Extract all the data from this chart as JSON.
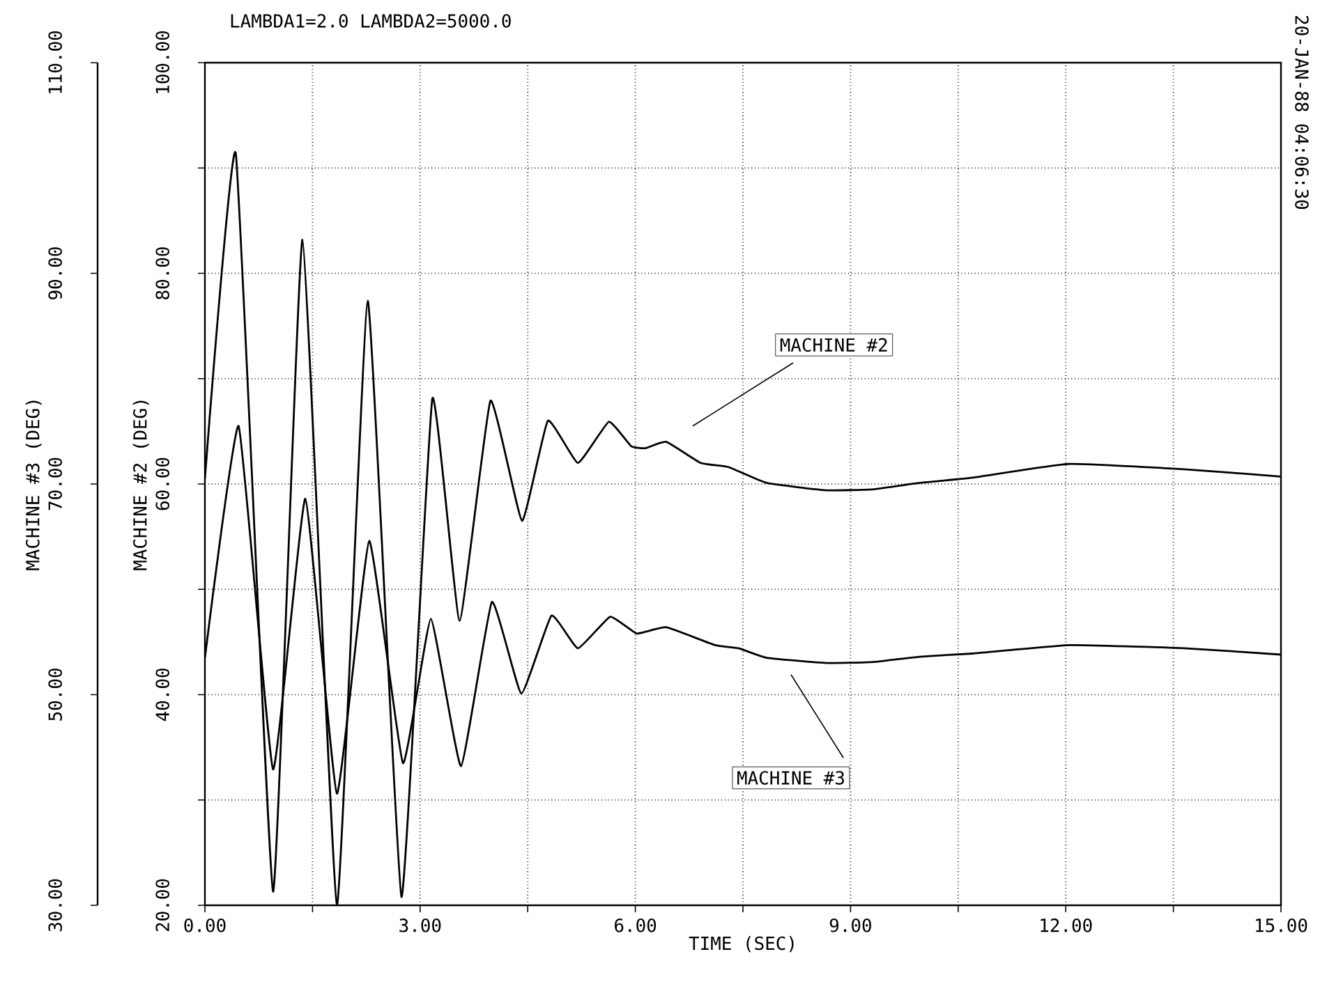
{
  "chart_data": {
    "type": "line",
    "title": "LAMBDA1=2.0     LAMBDA2=5000.0",
    "xlabel": "TIME (SEC)",
    "ylabel": "MACHINE #2 (DEG)",
    "y2label": "MACHINE #3 (DEG)",
    "annotations": [
      "20-JAN-88 04:06:30"
    ],
    "xlim": [
      0,
      15
    ],
    "ylim": [
      20,
      100
    ],
    "y2lim": [
      30,
      110
    ],
    "xticks": [
      {
        "value": 0,
        "label": "0.00"
      },
      {
        "value": 1.5,
        "label": null
      },
      {
        "value": 3,
        "label": "3.00"
      },
      {
        "value": 4.5,
        "label": null
      },
      {
        "value": 6,
        "label": "6.00"
      },
      {
        "value": 7.5,
        "label": null
      },
      {
        "value": 9,
        "label": "9.00"
      },
      {
        "value": 10.5,
        "label": null
      },
      {
        "value": 12,
        "label": "12.00"
      },
      {
        "value": 13.5,
        "label": null
      },
      {
        "value": 15,
        "label": "15.00"
      }
    ],
    "yticks": [
      {
        "value": 20,
        "label": "20.00"
      },
      {
        "value": 30,
        "label": null
      },
      {
        "value": 40,
        "label": "40.00"
      },
      {
        "value": 50,
        "label": null
      },
      {
        "value": 60,
        "label": "60.00"
      },
      {
        "value": 70,
        "label": null
      },
      {
        "value": 80,
        "label": "80.00"
      },
      {
        "value": 90,
        "label": null
      },
      {
        "value": 100,
        "label": "100.00"
      }
    ],
    "y2ticks": [
      {
        "value": 30,
        "label": "30.00"
      },
      {
        "value": 50,
        "label": "50.00"
      },
      {
        "value": 70,
        "label": "70.00"
      },
      {
        "value": 90,
        "label": "90.00"
      },
      {
        "value": 110,
        "label": "110.00"
      }
    ],
    "grid": true,
    "marker": "none",
    "line_style": "solid",
    "series": [
      {
        "name": "MACHINE #2",
        "color": "#000000",
        "x": [
          0,
          0.43,
          0.95,
          1.36,
          1.84,
          2.27,
          2.74,
          3.17,
          3.55,
          3.98,
          4.42,
          4.78,
          5.2,
          5.63,
          5.94,
          6.14,
          6.43,
          6.91,
          7.3,
          7.83,
          8.66,
          9.32,
          9.96,
          10.7,
          12.04,
          13.65,
          15
        ],
        "values": [
          60.5,
          91.4,
          21.3,
          83.2,
          20.0,
          77.4,
          20.8,
          68.1,
          47.0,
          67.9,
          56.5,
          66.0,
          62.0,
          65.9,
          63.6,
          63.4,
          64.0,
          62.0,
          61.6,
          60.1,
          59.4,
          59.5,
          60.1,
          60.6,
          61.9,
          61.4,
          60.7
        ]
      },
      {
        "name": "MACHINE #3",
        "color": "#000000",
        "axis": "y2",
        "x": [
          0,
          0.47,
          0.95,
          1.4,
          1.84,
          2.29,
          2.76,
          3.15,
          3.57,
          4.0,
          4.41,
          4.83,
          5.2,
          5.65,
          6.02,
          6.43,
          7.11,
          7.44,
          7.83,
          8.66,
          9.32,
          9.96,
          10.7,
          12.04,
          13.65,
          15
        ],
        "values": [
          53.5,
          75.5,
          42.9,
          68.6,
          40.6,
          64.6,
          43.5,
          57.2,
          43.2,
          58.8,
          50.1,
          57.5,
          54.4,
          57.4,
          55.8,
          56.4,
          54.7,
          54.4,
          53.5,
          53.0,
          53.1,
          53.6,
          53.9,
          54.7,
          54.4,
          53.8
        ]
      }
    ]
  }
}
